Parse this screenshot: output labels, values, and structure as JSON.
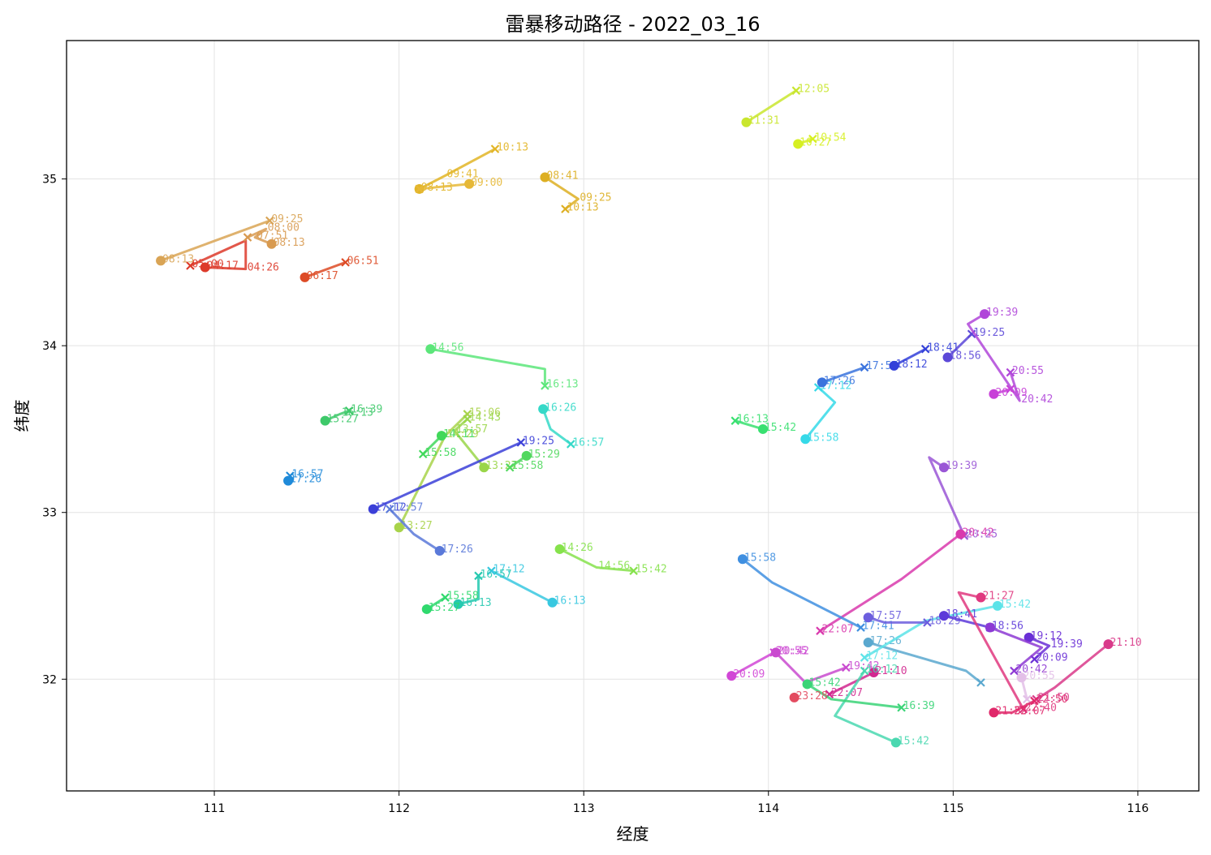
{
  "chart_data": {
    "type": "line",
    "title": "雷暴移动路径 - 2022_03_16",
    "xlabel": "经度",
    "ylabel": "纬度",
    "xlim": [
      110.2,
      116.33
    ],
    "ylim": [
      31.33,
      35.83
    ],
    "xticks": [
      "111",
      "112",
      "113",
      "114",
      "115",
      "116"
    ],
    "yticks": [
      "32",
      "33",
      "34",
      "35"
    ],
    "grid": true,
    "legend": "none",
    "start_marker": "circle",
    "end_marker": "x",
    "tracks": [
      {
        "color": "#dd3a2a",
        "points": [
          [
            110.95,
            34.47,
            "04:17"
          ],
          [
            111.17,
            34.46,
            "04:26"
          ],
          [
            111.17,
            34.63,
            ""
          ],
          [
            110.87,
            34.48,
            "05:00"
          ]
        ]
      },
      {
        "color": "#dd4b26",
        "points": [
          [
            111.49,
            34.41,
            "06:17"
          ],
          [
            111.71,
            34.5,
            "06:51"
          ]
        ]
      },
      {
        "color": "#d9a455",
        "points": [
          [
            110.71,
            34.51,
            "08:13"
          ],
          [
            111.3,
            34.75,
            "09:25"
          ]
        ]
      },
      {
        "color": "#d89a50",
        "points": [
          [
            111.31,
            34.61,
            "08:13"
          ],
          [
            111.22,
            34.65,
            "07:51"
          ],
          [
            111.28,
            34.7,
            "08:00"
          ],
          [
            111.18,
            34.65,
            ""
          ]
        ]
      },
      {
        "color": "#e2b526",
        "points": [
          [
            112.11,
            34.94,
            "08:13"
          ],
          [
            112.25,
            35.02,
            "09:41"
          ],
          [
            112.52,
            35.18,
            "10:13"
          ]
        ]
      },
      {
        "color": "#e6b837",
        "points": [
          [
            112.38,
            34.97,
            "09:00"
          ],
          [
            112.11,
            34.94,
            ""
          ]
        ]
      },
      {
        "color": "#ddaf22",
        "points": [
          [
            112.79,
            35.01,
            "08:41"
          ],
          [
            112.97,
            34.88,
            "09:25"
          ],
          [
            112.9,
            34.82,
            "10:13"
          ]
        ]
      },
      {
        "color": "#c9e62e",
        "points": [
          [
            113.88,
            35.34,
            "11:31"
          ],
          [
            114.15,
            35.53,
            "12:05"
          ]
        ]
      },
      {
        "color": "#d6ef22",
        "points": [
          [
            114.16,
            35.21,
            "10:27"
          ],
          [
            114.24,
            35.24,
            "10:54"
          ]
        ]
      },
      {
        "color": "#3ec96a",
        "points": [
          [
            111.6,
            33.55,
            "15:27"
          ],
          [
            111.68,
            33.59,
            "16:13"
          ],
          [
            111.73,
            33.61,
            "16:39"
          ]
        ]
      },
      {
        "color": "#1f8ad9",
        "points": [
          [
            111.4,
            33.19,
            "17:26"
          ],
          [
            111.41,
            33.22,
            "16:57"
          ]
        ]
      },
      {
        "color": "#5ce67a",
        "points": [
          [
            112.17,
            33.98,
            "14:56"
          ],
          [
            112.79,
            33.86,
            ""
          ],
          [
            112.79,
            33.76,
            "16:13"
          ]
        ]
      },
      {
        "color": "#a8d34a",
        "points": [
          [
            112.0,
            32.91,
            "13:27"
          ],
          [
            112.25,
            33.46,
            "14:29"
          ],
          [
            112.37,
            33.59,
            "15:06"
          ]
        ]
      },
      {
        "color": "#9ad649",
        "points": [
          [
            112.46,
            33.27,
            "13:27"
          ],
          [
            112.3,
            33.49,
            "13:57"
          ],
          [
            112.37,
            33.56,
            "14:43"
          ]
        ]
      },
      {
        "color": "#51d85e",
        "points": [
          [
            112.69,
            33.34,
            "15:29"
          ],
          [
            112.6,
            33.27,
            "15:58"
          ]
        ]
      },
      {
        "color": "#40d85a",
        "points": [
          [
            112.23,
            33.46,
            "14:11"
          ],
          [
            112.13,
            33.35,
            "15:58"
          ]
        ]
      },
      {
        "color": "#35d9c8",
        "points": [
          [
            112.78,
            33.62,
            "16:26"
          ],
          [
            112.82,
            33.5,
            ""
          ],
          [
            112.93,
            33.41,
            "16:57"
          ]
        ]
      },
      {
        "color": "#3b3fd8",
        "points": [
          [
            111.86,
            33.02,
            "17:12"
          ],
          [
            112.66,
            33.42,
            "19:25"
          ]
        ]
      },
      {
        "color": "#5a79d9",
        "points": [
          [
            112.22,
            32.77,
            "17:26"
          ],
          [
            112.08,
            32.87,
            ""
          ],
          [
            111.95,
            33.02,
            "17:57"
          ]
        ]
      },
      {
        "color": "#86e24c",
        "points": [
          [
            112.87,
            32.78,
            "14:26"
          ],
          [
            113.07,
            32.67,
            "14:56"
          ],
          [
            113.27,
            32.65,
            "15:42"
          ]
        ]
      },
      {
        "color": "#38c8e0",
        "points": [
          [
            112.83,
            32.46,
            "16:13"
          ],
          [
            112.5,
            32.65,
            "17:12"
          ]
        ]
      },
      {
        "color": "#26c9b0",
        "points": [
          [
            112.32,
            32.45,
            "16:13"
          ],
          [
            112.43,
            32.48,
            ""
          ],
          [
            112.43,
            32.62,
            "16:57"
          ]
        ]
      },
      {
        "color": "#2fd96d",
        "points": [
          [
            112.15,
            32.42,
            "15:27"
          ],
          [
            112.25,
            32.49,
            "15:58"
          ]
        ]
      },
      {
        "color": "#38e070",
        "points": [
          [
            113.97,
            33.5,
            "15:42"
          ],
          [
            113.82,
            33.55,
            "16:13"
          ]
        ]
      },
      {
        "color": "#36d9e8",
        "points": [
          [
            114.2,
            33.44,
            "15:58"
          ],
          [
            114.36,
            33.66,
            ""
          ],
          [
            114.27,
            33.75,
            "17:12"
          ]
        ]
      },
      {
        "color": "#3a73dd",
        "points": [
          [
            114.29,
            33.78,
            "17:26"
          ],
          [
            114.52,
            33.87,
            "17:57"
          ]
        ]
      },
      {
        "color": "#3340d9",
        "points": [
          [
            114.68,
            33.88,
            "18:12"
          ],
          [
            114.85,
            33.98,
            "18:41"
          ]
        ]
      },
      {
        "color": "#5c48d8",
        "points": [
          [
            114.97,
            33.93,
            "18:56"
          ],
          [
            115.1,
            34.07,
            "19:25"
          ]
        ]
      },
      {
        "color": "#b046d9",
        "points": [
          [
            115.17,
            34.19,
            "19:39"
          ],
          [
            115.08,
            34.13,
            ""
          ],
          [
            115.36,
            33.67,
            "20:42"
          ],
          [
            115.31,
            33.84,
            "20:55"
          ]
        ]
      },
      {
        "color": "#c840d8",
        "points": [
          [
            115.22,
            33.71,
            "20:09"
          ],
          [
            115.31,
            33.74,
            ""
          ]
        ]
      },
      {
        "color": "#9a56d6",
        "points": [
          [
            114.95,
            33.27,
            "19:39"
          ],
          [
            114.87,
            33.33,
            ""
          ],
          [
            115.06,
            32.86,
            "20:25"
          ]
        ]
      },
      {
        "color": "#d939ad",
        "points": [
          [
            115.04,
            32.87,
            "20:42"
          ],
          [
            114.72,
            32.6,
            ""
          ],
          [
            114.28,
            32.29,
            "22:07"
          ]
        ]
      },
      {
        "color": "#3f8fe0",
        "points": [
          [
            113.86,
            32.72,
            "15:58"
          ],
          [
            114.02,
            32.58,
            ""
          ],
          [
            114.5,
            32.31,
            "17:41"
          ]
        ]
      },
      {
        "color": "#5aa8cf",
        "points": [
          [
            114.54,
            32.22,
            "17:26"
          ],
          [
            115.07,
            32.05,
            ""
          ],
          [
            115.15,
            31.98,
            ""
          ]
        ]
      },
      {
        "color": "#5ce3e8",
        "points": [
          [
            115.24,
            32.44,
            "15:42"
          ],
          [
            114.85,
            32.35,
            ""
          ],
          [
            114.52,
            32.13,
            "17:12"
          ]
        ]
      },
      {
        "color": "#6c5ede",
        "points": [
          [
            114.54,
            32.37,
            "17:57"
          ],
          [
            114.63,
            32.34,
            ""
          ],
          [
            114.86,
            32.34,
            "18:29"
          ]
        ]
      },
      {
        "color": "#5d3ad9",
        "points": [
          [
            114.95,
            32.38,
            "18:41"
          ],
          [
            115.2,
            32.31,
            "18:56"
          ]
        ]
      },
      {
        "color": "#6a2fd6",
        "points": [
          [
            115.41,
            32.25,
            "19:12"
          ],
          [
            115.52,
            32.2,
            "19:39"
          ],
          [
            115.44,
            32.12,
            "20:09"
          ]
        ]
      },
      {
        "color": "#8d39d4",
        "points": [
          [
            115.2,
            32.31,
            ""
          ],
          [
            115.48,
            32.19,
            ""
          ],
          [
            115.33,
            32.05,
            "20:42"
          ]
        ]
      },
      {
        "color": "#e0387f",
        "points": [
          [
            115.15,
            32.49,
            "21:27"
          ],
          [
            115.03,
            32.52,
            ""
          ],
          [
            115.38,
            31.82,
            "22:40"
          ]
        ]
      },
      {
        "color": "#e3c0e8",
        "points": [
          [
            115.37,
            32.01,
            "20:55"
          ],
          [
            115.4,
            31.88,
            ""
          ]
        ]
      },
      {
        "color": "#d93a8a",
        "points": [
          [
            115.84,
            32.21,
            "21:10"
          ],
          [
            115.55,
            31.95,
            ""
          ],
          [
            115.45,
            31.88,
            "21:50"
          ]
        ]
      },
      {
        "color": "#e0286a",
        "points": [
          [
            115.22,
            31.8,
            "21:55"
          ],
          [
            115.32,
            31.8,
            "22:07"
          ],
          [
            115.44,
            31.87,
            "22:50"
          ]
        ]
      },
      {
        "color": "#d146d6",
        "points": [
          [
            113.8,
            32.02,
            "20:09"
          ],
          [
            114.03,
            32.16,
            "20:55"
          ]
        ]
      },
      {
        "color": "#c94acf",
        "points": [
          [
            114.04,
            32.16,
            "20:42"
          ],
          [
            114.2,
            31.98,
            ""
          ],
          [
            114.42,
            32.07,
            "19:42"
          ]
        ]
      },
      {
        "color": "#d1288f",
        "points": [
          [
            114.57,
            32.04,
            "21:10"
          ],
          [
            114.33,
            31.91,
            "22:07"
          ]
        ]
      },
      {
        "color": "#4ad8b0",
        "points": [
          [
            114.69,
            31.62,
            "15:42"
          ],
          [
            114.36,
            31.78,
            ""
          ],
          [
            114.52,
            32.05,
            "16:12"
          ]
        ]
      },
      {
        "color": "#3ad477",
        "points": [
          [
            114.21,
            31.97,
            "15:42"
          ],
          [
            114.34,
            31.88,
            ""
          ],
          [
            114.72,
            31.83,
            "16:39"
          ]
        ]
      },
      {
        "color": "#e34b60",
        "points": [
          [
            114.14,
            31.89,
            "23:28"
          ]
        ]
      }
    ]
  }
}
